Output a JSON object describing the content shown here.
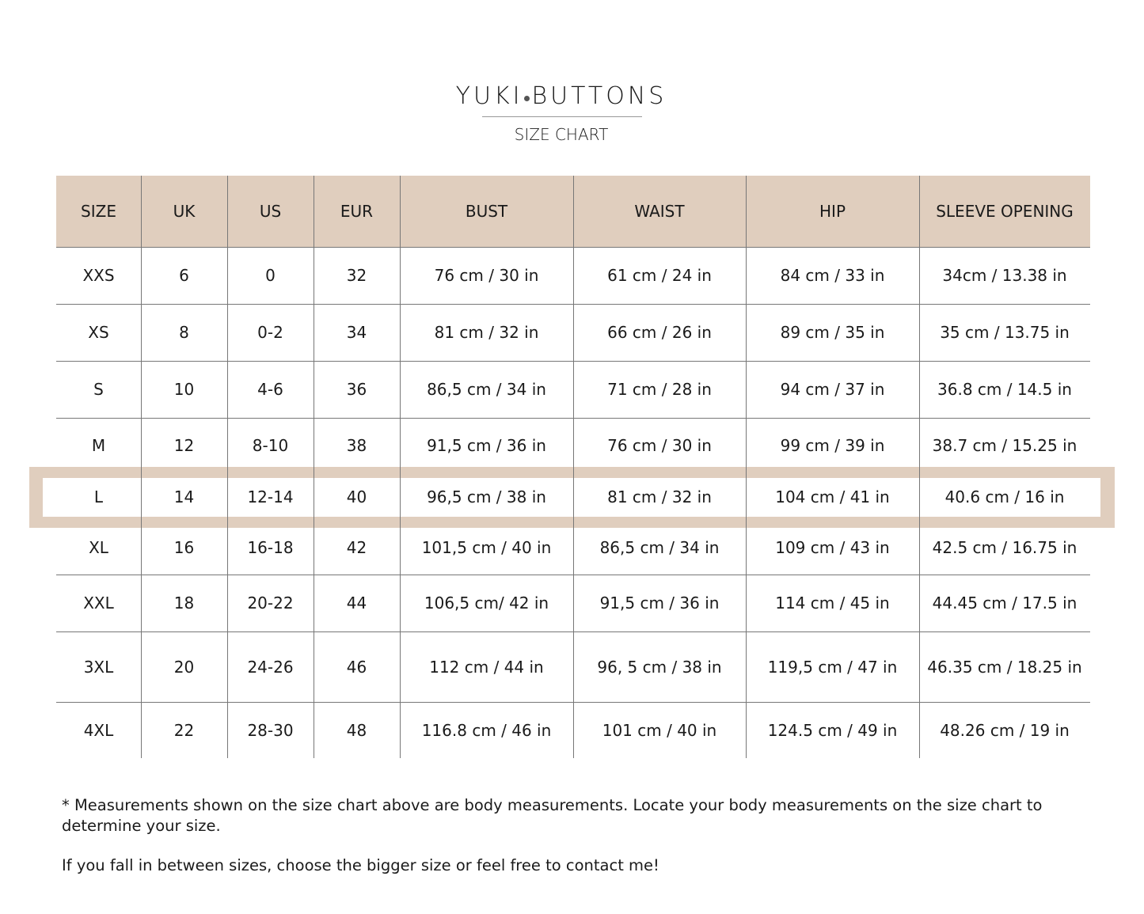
{
  "brand": {
    "left": "YUKI",
    "right": "BUTTONS"
  },
  "subtitle": "SIZE CHART",
  "accent_color": "#e0cebe",
  "table": {
    "headers": [
      "SIZE",
      "UK",
      "US",
      "EUR",
      "BUST",
      "WAIST",
      "HIP",
      "SLEEVE OPENING"
    ],
    "highlighted_row": "L",
    "rows": [
      [
        "XXS",
        "6",
        "0",
        "32",
        "76 cm / 30 in",
        "61 cm / 24 in",
        "84 cm / 33 in",
        "34cm / 13.38 in"
      ],
      [
        "XS",
        "8",
        "0-2",
        "34",
        "81 cm / 32 in",
        "66 cm / 26 in",
        "89 cm / 35 in",
        "35 cm / 13.75 in"
      ],
      [
        "S",
        "10",
        "4-6",
        "36",
        "86,5 cm / 34 in",
        "71 cm / 28 in",
        "94 cm / 37 in",
        "36.8 cm / 14.5 in"
      ],
      [
        "M",
        "12",
        "8-10",
        "38",
        "91,5 cm / 36 in",
        "76 cm / 30 in",
        "99 cm / 39 in",
        "38.7 cm / 15.25 in"
      ],
      [
        "L",
        "14",
        "12-14",
        "40",
        "96,5 cm / 38 in",
        "81 cm / 32 in",
        "104 cm / 41 in",
        "40.6 cm / 16 in"
      ],
      [
        "XL",
        "16",
        "16-18",
        "42",
        "101,5 cm / 40 in",
        "86,5 cm / 34 in",
        "109 cm / 43 in",
        "42.5 cm / 16.75 in"
      ],
      [
        "XXL",
        "18",
        "20-22",
        "44",
        "106,5 cm/ 42 in",
        "91,5 cm / 36 in",
        "114 cm / 45 in",
        "44.45 cm / 17.5 in"
      ],
      [
        "3XL",
        "20",
        "24-26",
        "46",
        "112 cm / 44 in",
        "96, 5 cm / 38 in",
        "119,5 cm / 47 in",
        "46.35 cm / 18.25 in"
      ],
      [
        "4XL",
        "22",
        "28-30",
        "48",
        "116.8 cm / 46 in",
        "101 cm / 40 in",
        "124.5 cm / 49 in",
        "48.26 cm / 19 in"
      ]
    ]
  },
  "notes": {
    "line1": "* Measurements shown on the size chart above are body measurements. Locate your body measurements on the size chart to determine your size.",
    "line2": "If you fall in between sizes, choose the bigger size or feel free to contact me!"
  }
}
